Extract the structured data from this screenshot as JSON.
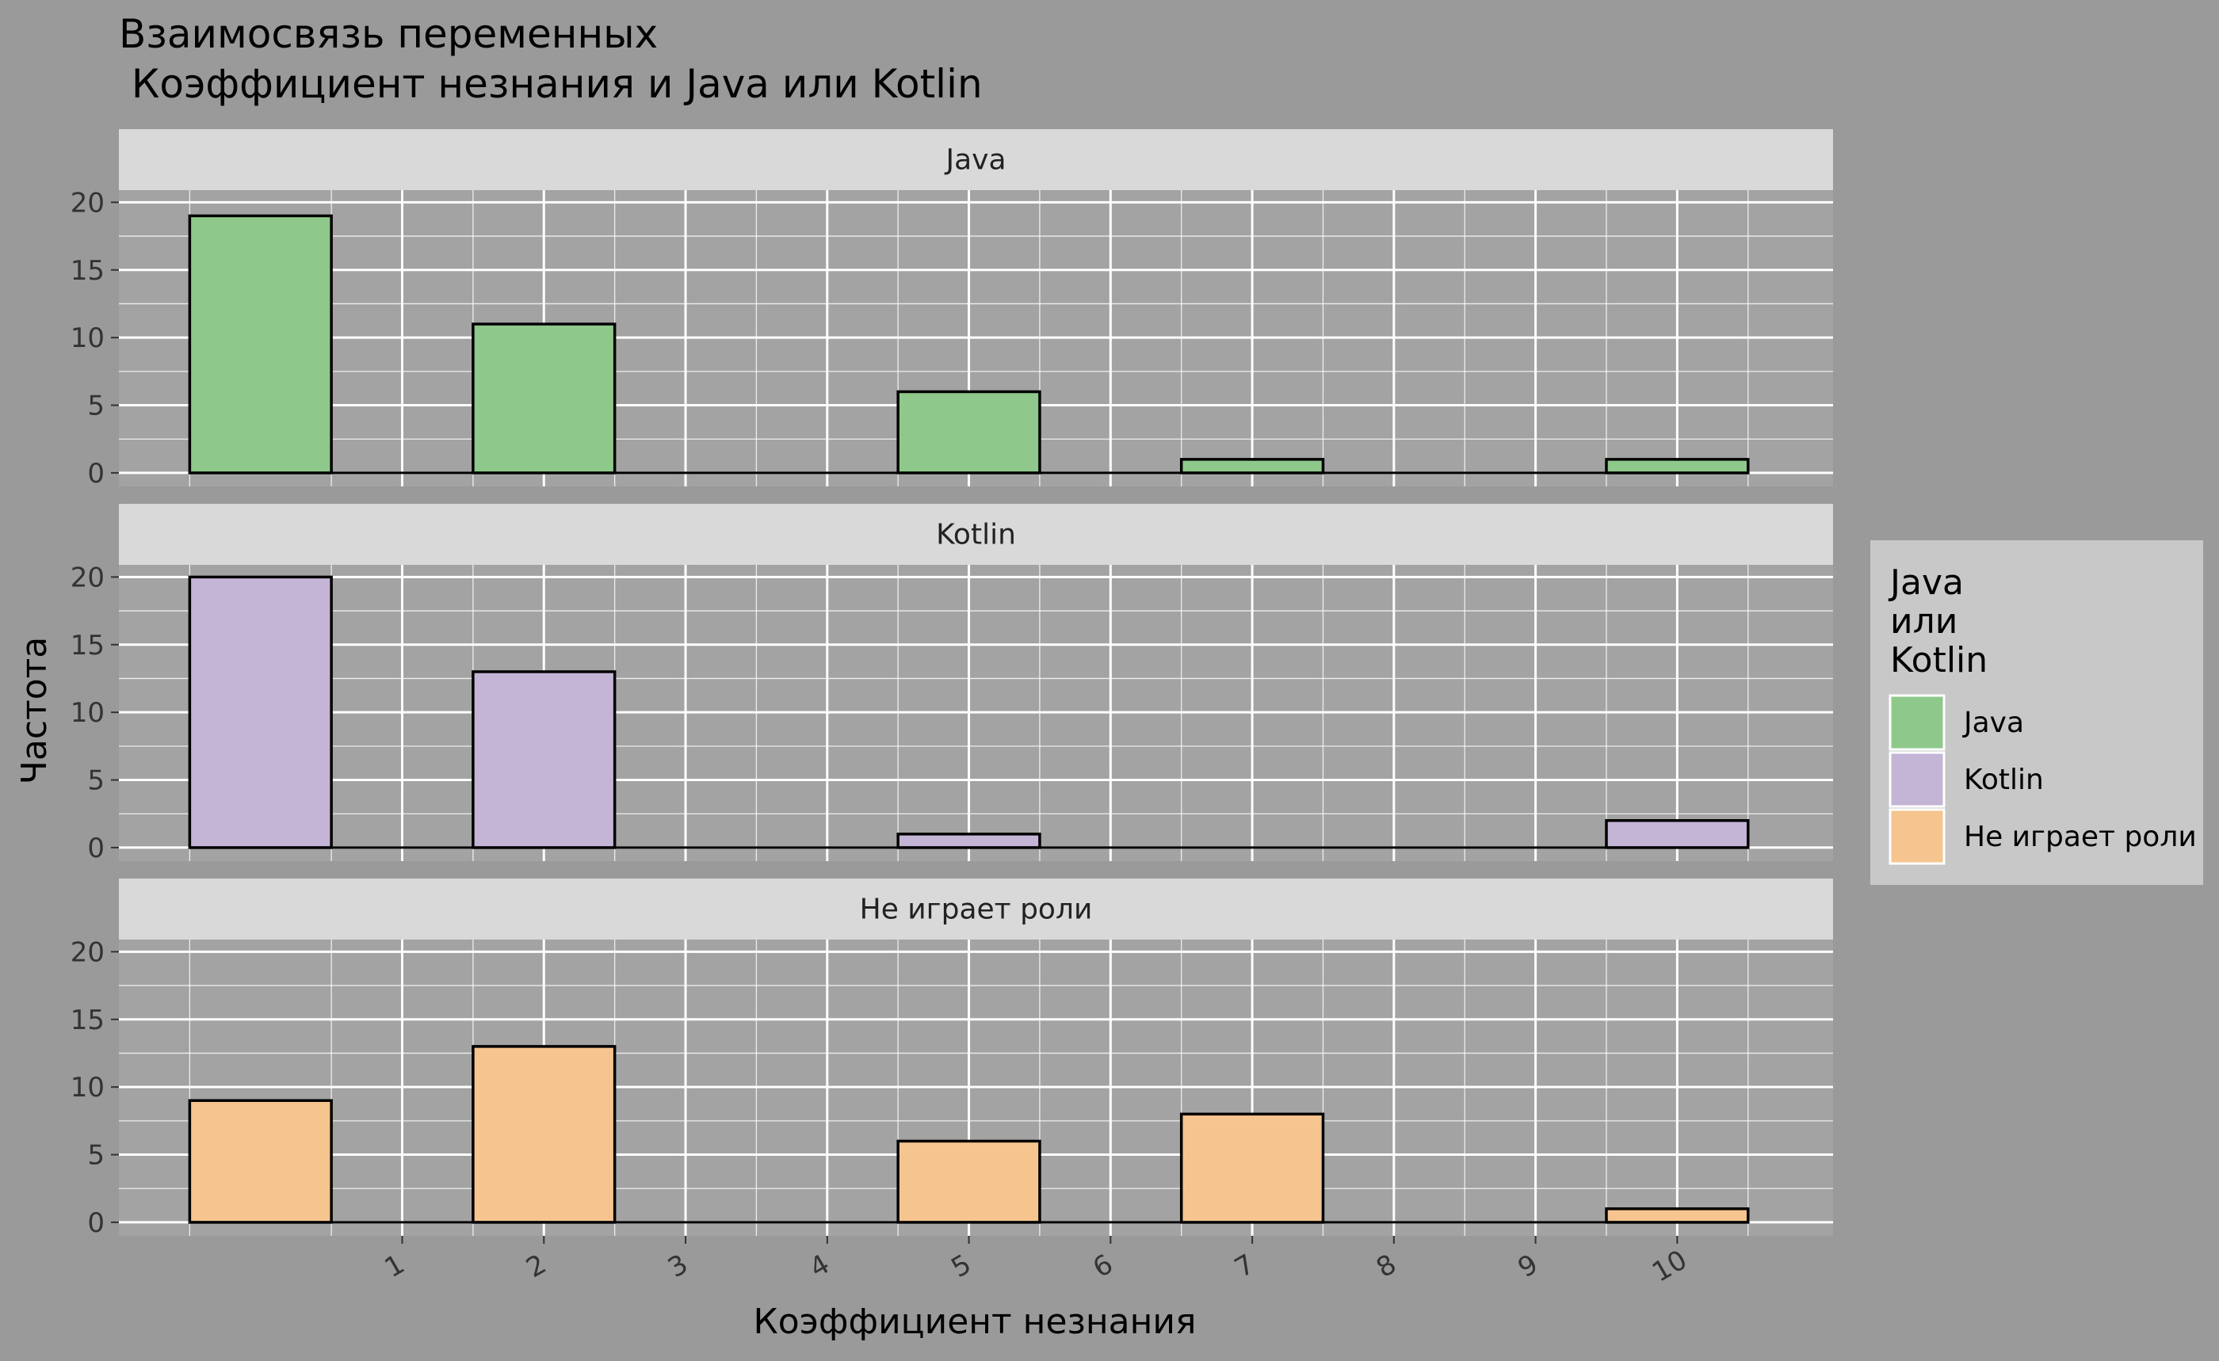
{
  "chart_data": {
    "type": "bar",
    "title_line1": "Взаимосвязь переменных",
    "title_line2": " Коэффициент незнания и Java или Kotlin",
    "xlabel": "Коэффициент незнания",
    "ylabel": "Частота",
    "x_ticks": [
      1,
      2,
      3,
      4,
      5,
      6,
      7,
      8,
      9,
      10
    ],
    "xlim": [
      -1,
      11.1
    ],
    "y_ticks": [
      0,
      5,
      10,
      15,
      20
    ],
    "ylim": [
      -1,
      20.9
    ],
    "bar_width": 1,
    "x": [
      0,
      2,
      5,
      7,
      10
    ],
    "grid": true,
    "legend": {
      "title": [
        "Java",
        "или",
        "Kotlin"
      ],
      "position": "right",
      "entries": [
        "Java",
        "Kotlin",
        "Не играет роли"
      ]
    },
    "colors": {
      "background": "#9a9a9a",
      "panel": "#a3a3a3",
      "strip": "#d9d9d9",
      "legend_bg": "#c8c8c8",
      "grid": "#ffffff",
      "bar_outline": "#000000"
    },
    "series": [
      {
        "name": "Java",
        "color": "#8ec88a",
        "values": [
          19,
          11,
          6,
          1,
          1
        ]
      },
      {
        "name": "Kotlin",
        "color": "#c4b4d6",
        "values": [
          20,
          13,
          1,
          0,
          2
        ]
      },
      {
        "name": "Не играет роли",
        "color": "#f6c48e",
        "values": [
          9,
          13,
          6,
          8,
          1
        ]
      }
    ]
  }
}
